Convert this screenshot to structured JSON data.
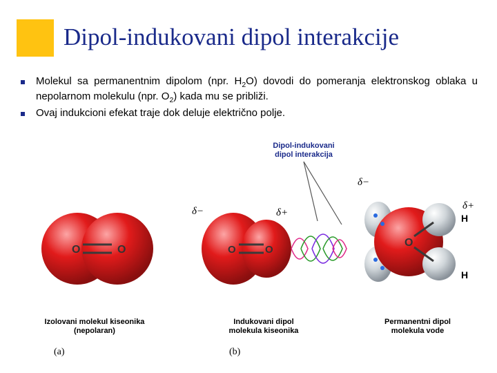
{
  "title": "Dipol-indukovani dipol interakcije",
  "bullets": [
    "Molekul sa permanentnim dipolom (npr. H<sub>2</sub>O) dovodi do pomeranja elektronskog oblaka u nepolarnom molekulu (npr. O<sub>2</sub>) kada mu se približi.",
    "Ovaj indukcioni efekat traje dok deluje električno polje."
  ],
  "figure": {
    "top_label": "Dipol-indukovani<br>dipol interakcija",
    "delta_minus": "δ−",
    "delta_plus": "δ+",
    "H_label": "H",
    "O_label": "O",
    "panels": {
      "a": {
        "caption": "Izolovani molekul kiseonika<br>(nepolaran)",
        "letter": "(a)",
        "colors": {
          "sphere": "#e11b1b",
          "shade": "#8a0f0f",
          "highlight": "#fca5a5",
          "bond": "#444"
        }
      },
      "b": {
        "caption": "Indukovani dipol<br>molekula kiseonika",
        "letter": "(b)",
        "colors": {
          "sphere": "#e11b1b",
          "shade": "#8a0f0f",
          "highlight": "#fca5a5",
          "bond": "#444",
          "field1": "#e02a8a",
          "field2": "#2a9a2a",
          "field3": "#7a2ae0"
        }
      },
      "c": {
        "caption": "Permanentni dipol<br>molekula vode",
        "colors": {
          "O": "#e11b1b",
          "O_shade": "#8a0f0f",
          "O_hl": "#fca5a5",
          "H": "#d0d6da",
          "H_shade": "#8a929a",
          "H_hl": "#ffffff",
          "lone": "#2a6adf"
        }
      }
    }
  },
  "colors": {
    "accent": "#ffc311",
    "title": "#1a2a8a",
    "background": "#ffffff"
  }
}
